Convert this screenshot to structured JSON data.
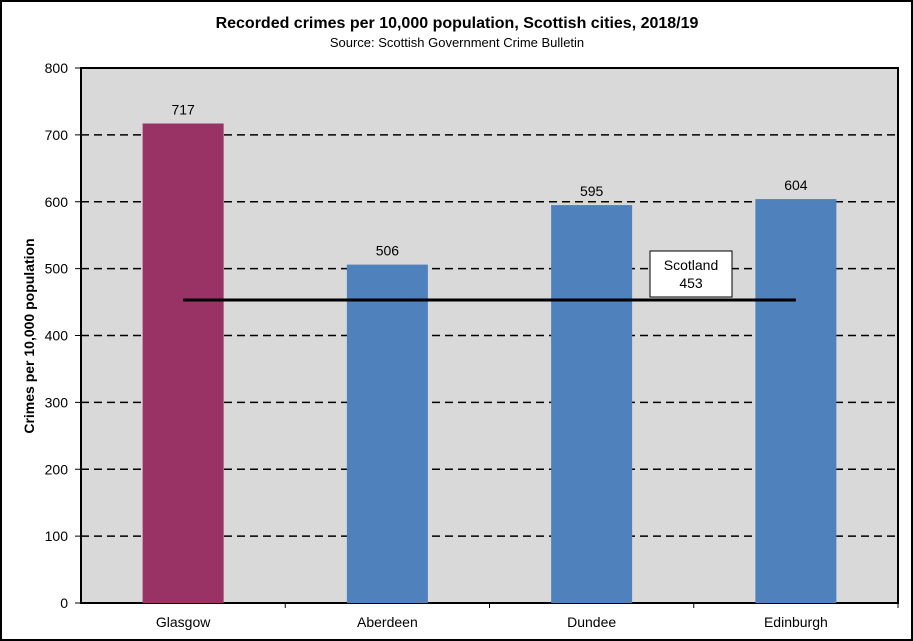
{
  "chart_data": {
    "type": "bar",
    "title": "Recorded crimes per 10,000 population, Scottish cities, 2018/19",
    "subtitle": "Source: Scottish Government Crime Bulletin",
    "xlabel": "",
    "ylabel": "Crimes per 10,000 population",
    "ylim": [
      0,
      800
    ],
    "yticks": [
      0,
      100,
      200,
      300,
      400,
      500,
      600,
      700,
      800
    ],
    "grid": true,
    "categories": [
      "Glasgow",
      "Aberdeen",
      "Dundee",
      "Edinburgh"
    ],
    "values": [
      717,
      506,
      595,
      604
    ],
    "data_labels": [
      "717",
      "506",
      "595",
      "604"
    ],
    "bar_colors": [
      "#993366",
      "#4F81BD",
      "#4F81BD",
      "#4F81BD"
    ],
    "plot_background": "#D9D9D9",
    "reference_line": {
      "name": "Scotland",
      "value": 453,
      "label": "453",
      "color": "#000000"
    }
  }
}
